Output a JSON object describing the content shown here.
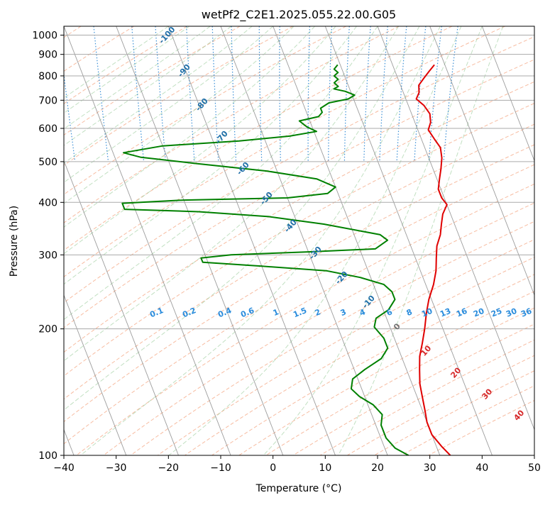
{
  "chart_data": {
    "type": "line",
    "title": "wetPf2_C2E1.2025.055.22.00.G05",
    "xlabel": "Temperature (°C)",
    "ylabel": "Pressure (hPa)",
    "xlim": [
      -40,
      50
    ],
    "ylim": [
      1050,
      100
    ],
    "yscale": "log",
    "x_ticks": [
      -40,
      -30,
      -20,
      -10,
      0,
      10,
      20,
      30,
      40,
      50
    ],
    "y_ticks": [
      100,
      200,
      300,
      400,
      500,
      600,
      700,
      800,
      900,
      1000
    ],
    "grid": true,
    "series": [
      {
        "color": "#e00000",
        "points": [
          [
            28,
            850
          ],
          [
            26.5,
            820
          ],
          [
            25,
            790
          ],
          [
            23.5,
            760
          ],
          [
            23,
            730
          ],
          [
            22,
            705
          ],
          [
            23,
            680
          ],
          [
            23.5,
            650
          ],
          [
            23,
            620
          ],
          [
            22,
            595
          ],
          [
            22.5,
            565
          ],
          [
            23,
            540
          ],
          [
            22.5,
            510
          ],
          [
            21.5,
            480
          ],
          [
            20.5,
            455
          ],
          [
            19.5,
            430
          ],
          [
            19.5,
            410
          ],
          [
            20,
            395
          ],
          [
            18.5,
            375
          ],
          [
            17.5,
            355
          ],
          [
            16.5,
            335
          ],
          [
            15,
            315
          ],
          [
            14,
            295
          ],
          [
            13,
            275
          ],
          [
            11.5,
            255
          ],
          [
            9.5,
            235
          ],
          [
            8,
            218
          ],
          [
            6.5,
            200
          ],
          [
            5,
            185
          ],
          [
            3.5,
            172
          ],
          [
            2.5,
            160
          ],
          [
            1.5,
            148
          ],
          [
            1,
            138
          ],
          [
            0.5,
            128
          ],
          [
            0,
            120
          ],
          [
            0,
            112
          ],
          [
            1,
            105
          ],
          [
            2,
            100
          ]
        ]
      },
      {
        "color": "#008000",
        "points": [
          [
            9.5,
            850
          ],
          [
            8.5,
            830
          ],
          [
            9,
            815
          ],
          [
            8,
            800
          ],
          [
            8.5,
            785
          ],
          [
            7.5,
            770
          ],
          [
            8,
            755
          ],
          [
            7,
            745
          ],
          [
            9,
            735
          ],
          [
            10.5,
            720
          ],
          [
            9,
            705
          ],
          [
            5,
            690
          ],
          [
            3,
            670
          ],
          [
            3,
            655
          ],
          [
            2,
            640
          ],
          [
            -2,
            625
          ],
          [
            -1,
            605
          ],
          [
            0.5,
            590
          ],
          [
            -5,
            575
          ],
          [
            -15,
            560
          ],
          [
            -30,
            545
          ],
          [
            -38,
            525
          ],
          [
            -35,
            512
          ],
          [
            -25,
            495
          ],
          [
            -12,
            475
          ],
          [
            -3,
            455
          ],
          [
            0,
            435
          ],
          [
            -2,
            420
          ],
          [
            -10,
            410
          ],
          [
            -30,
            405
          ],
          [
            -42,
            398
          ],
          [
            -42,
            385
          ],
          [
            -28,
            380
          ],
          [
            -15,
            370
          ],
          [
            -5,
            355
          ],
          [
            5,
            335
          ],
          [
            6,
            325
          ],
          [
            3,
            310
          ],
          [
            -10,
            305
          ],
          [
            -25,
            300
          ],
          [
            -31,
            295
          ],
          [
            -31,
            288
          ],
          [
            -20,
            282
          ],
          [
            -8,
            275
          ],
          [
            -2,
            265
          ],
          [
            2,
            255
          ],
          [
            3,
            245
          ],
          [
            3,
            235
          ],
          [
            1,
            222
          ],
          [
            -2,
            212
          ],
          [
            -3,
            202
          ],
          [
            -2,
            190
          ],
          [
            -2,
            180
          ],
          [
            -4,
            170
          ],
          [
            -8,
            160
          ],
          [
            -11,
            152
          ],
          [
            -12,
            144
          ],
          [
            -11,
            138
          ],
          [
            -9,
            132
          ],
          [
            -8,
            125
          ],
          [
            -9,
            118
          ],
          [
            -9,
            110
          ],
          [
            -8,
            104
          ],
          [
            -6,
            100
          ]
        ]
      }
    ],
    "dry_adiabat_labels": [
      "-100",
      "-90",
      "-80",
      "-70",
      "-60",
      "-50",
      "-40",
      "-30",
      "-20",
      "-10",
      "0",
      "10",
      "20",
      "30",
      "40"
    ],
    "mixing_ratio_labels": [
      "0.1",
      "0.2",
      "0.4",
      "0.6",
      "1",
      "1.5",
      "2",
      "3",
      "4",
      "6",
      "8",
      "10",
      "13",
      "16",
      "20",
      "25",
      "30",
      "36"
    ],
    "mixing_ratio_values": [
      0.1,
      0.2,
      0.4,
      0.6,
      1,
      1.5,
      2,
      3,
      4,
      6,
      8,
      10,
      13,
      16,
      20,
      25,
      30,
      36
    ],
    "colors": {
      "temperature": "#e00000",
      "dewpoint": "#008000",
      "isotherm": "#8c8c8c",
      "isobar": "#aaaaaa",
      "dry_adiabat": "#f4a582",
      "moist_adiabat": "#99cc99",
      "mixing_ratio": "#3a8fd6",
      "dry_adiabat_label_cold": "#1f6fa8",
      "dry_adiabat_label_warm": "#d62728",
      "mixing_ratio_label": "#2a8cdc",
      "boundary_curve": "#d8c4a0"
    }
  }
}
